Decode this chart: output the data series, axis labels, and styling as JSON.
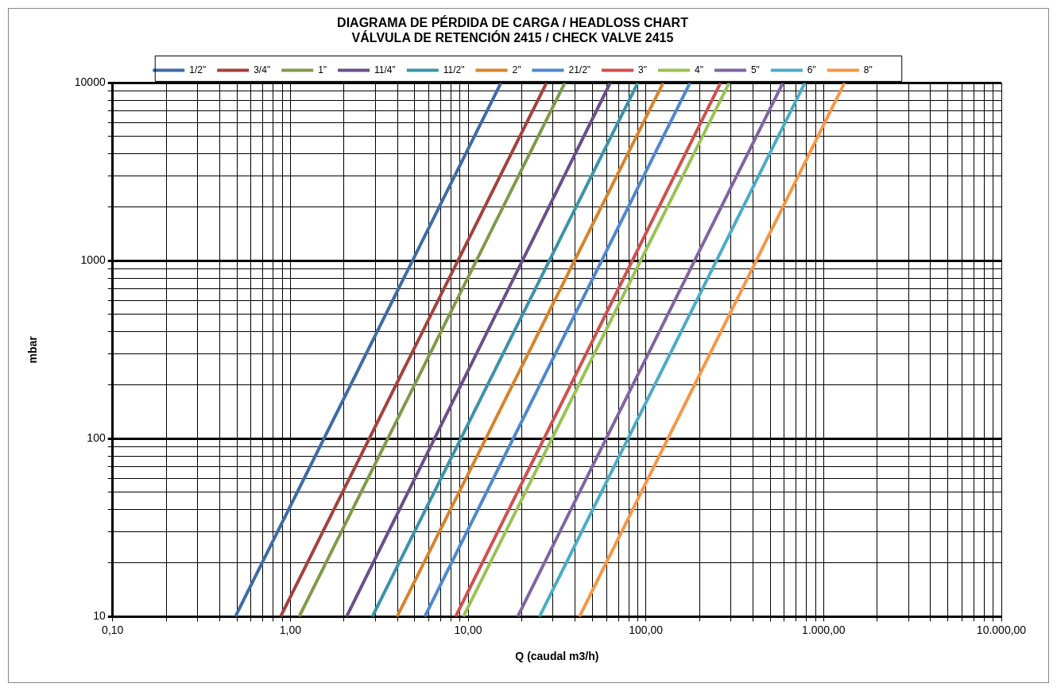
{
  "chart_data": {
    "type": "line",
    "title": "DIAGRAMA DE PÉRDIDA DE CARGA / HEADLOSS CHART\nVÁLVULA DE RETENCIÓN 2415 / CHECK VALVE 2415",
    "xlabel": "Q (caudal m3/h)",
    "ylabel": "mbar",
    "log": "xy",
    "grid": true,
    "legend": "top",
    "marker": "none",
    "line_style": "solid",
    "xlim": [
      0.1,
      10000
    ],
    "ylim": [
      10,
      10000
    ],
    "xticks": [
      {
        "value": 0.1,
        "label": "0,10"
      },
      {
        "value": 0.2,
        "label": null
      },
      {
        "value": 0.3,
        "label": null
      },
      {
        "value": 0.4,
        "label": null
      },
      {
        "value": 0.5,
        "label": null
      },
      {
        "value": 0.6,
        "label": null
      },
      {
        "value": 0.7,
        "label": null
      },
      {
        "value": 0.8,
        "label": null
      },
      {
        "value": 0.9,
        "label": null
      },
      {
        "value": 1,
        "label": "1,00"
      },
      {
        "value": 2,
        "label": null
      },
      {
        "value": 3,
        "label": null
      },
      {
        "value": 4,
        "label": null
      },
      {
        "value": 5,
        "label": null
      },
      {
        "value": 6,
        "label": null
      },
      {
        "value": 7,
        "label": null
      },
      {
        "value": 8,
        "label": null
      },
      {
        "value": 9,
        "label": null
      },
      {
        "value": 10,
        "label": "10,00"
      },
      {
        "value": 20,
        "label": null
      },
      {
        "value": 30,
        "label": null
      },
      {
        "value": 40,
        "label": null
      },
      {
        "value": 50,
        "label": null
      },
      {
        "value": 60,
        "label": null
      },
      {
        "value": 70,
        "label": null
      },
      {
        "value": 80,
        "label": null
      },
      {
        "value": 90,
        "label": null
      },
      {
        "value": 100,
        "label": "100,00"
      },
      {
        "value": 200,
        "label": null
      },
      {
        "value": 300,
        "label": null
      },
      {
        "value": 400,
        "label": null
      },
      {
        "value": 500,
        "label": null
      },
      {
        "value": 600,
        "label": null
      },
      {
        "value": 700,
        "label": null
      },
      {
        "value": 800,
        "label": null
      },
      {
        "value": 900,
        "label": null
      },
      {
        "value": 1000,
        "label": "1.000,00"
      },
      {
        "value": 2000,
        "label": null
      },
      {
        "value": 3000,
        "label": null
      },
      {
        "value": 4000,
        "label": null
      },
      {
        "value": 5000,
        "label": null
      },
      {
        "value": 6000,
        "label": null
      },
      {
        "value": 7000,
        "label": null
      },
      {
        "value": 8000,
        "label": null
      },
      {
        "value": 9000,
        "label": null
      },
      {
        "value": 10000,
        "label": "10.000,00"
      }
    ],
    "yticks": [
      10,
      {
        "value": 20,
        "label": null
      },
      {
        "value": 30,
        "label": null
      },
      {
        "value": 40,
        "label": null
      },
      {
        "value": 50,
        "label": null
      },
      {
        "value": 60,
        "label": null
      },
      {
        "value": 70,
        "label": null
      },
      {
        "value": 80,
        "label": null
      },
      {
        "value": 90,
        "label": null
      },
      100,
      {
        "value": 200,
        "label": null
      },
      {
        "value": 300,
        "label": null
      },
      {
        "value": 400,
        "label": null
      },
      {
        "value": 500,
        "label": null
      },
      {
        "value": 600,
        "label": null
      },
      {
        "value": 700,
        "label": null
      },
      {
        "value": 800,
        "label": null
      },
      {
        "value": 900,
        "label": null
      },
      1000,
      {
        "value": 2000,
        "label": null
      },
      {
        "value": 3000,
        "label": null
      },
      {
        "value": 4000,
        "label": null
      },
      {
        "value": 5000,
        "label": null
      },
      {
        "value": 6000,
        "label": null
      },
      {
        "value": 7000,
        "label": null
      },
      {
        "value": 8000,
        "label": null
      },
      {
        "value": 9000,
        "label": null
      },
      10000
    ],
    "series": [
      {
        "name": "1/2\"",
        "color": "#3e6ba5",
        "x": [
          0.49,
          15.3
        ],
        "values": [
          10,
          10000
        ]
      },
      {
        "name": "3/4\"",
        "color": "#a6403d",
        "x": [
          0.88,
          27.6
        ],
        "values": [
          10,
          10000
        ]
      },
      {
        "name": "1\"",
        "color": "#7f9a48",
        "x": [
          1.12,
          35
        ],
        "values": [
          10,
          10000
        ]
      },
      {
        "name": "11/4\"",
        "color": "#6a4f8a",
        "x": [
          2.07,
          63
        ],
        "values": [
          10,
          10000
        ]
      },
      {
        "name": "11/2\"",
        "color": "#3a93a8",
        "x": [
          2.89,
          90
        ],
        "values": [
          10,
          10000
        ]
      },
      {
        "name": "2\"",
        "color": "#d9822b",
        "x": [
          3.98,
          125
        ],
        "values": [
          10,
          10000
        ]
      },
      {
        "name": "21/2\"",
        "color": "#4f87d0",
        "x": [
          5.7,
          177
        ],
        "values": [
          10,
          10000
        ]
      },
      {
        "name": "3\"",
        "color": "#d0504d",
        "x": [
          8.5,
          263
        ],
        "values": [
          10,
          10000
        ]
      },
      {
        "name": "4\"",
        "color": "#9bc154",
        "x": [
          9.4,
          294
        ],
        "values": [
          10,
          10000
        ]
      },
      {
        "name": "5\"",
        "color": "#8064a2",
        "x": [
          19,
          590
        ],
        "values": [
          10,
          10000
        ]
      },
      {
        "name": "6\"",
        "color": "#4bacc6",
        "x": [
          25.2,
          784
        ],
        "values": [
          10,
          10000
        ]
      },
      {
        "name": "8\"",
        "color": "#f79646",
        "x": [
          42.3,
          1310
        ],
        "values": [
          10,
          10000
        ]
      }
    ]
  }
}
